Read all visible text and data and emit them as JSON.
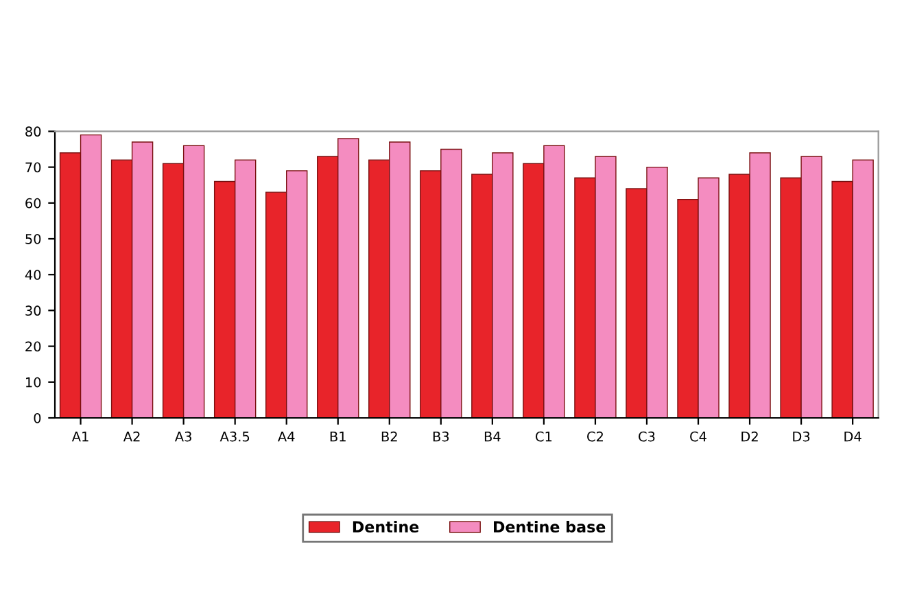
{
  "chart_data": {
    "type": "bar",
    "categories": [
      "A1",
      "A2",
      "A3",
      "A3.5",
      "A4",
      "B1",
      "B2",
      "B3",
      "B4",
      "C1",
      "C2",
      "C3",
      "C4",
      "D2",
      "D3",
      "D4"
    ],
    "series": [
      {
        "name": "Dentine",
        "color": "#e8242a",
        "values": [
          74,
          72,
          71,
          66,
          63,
          73,
          72,
          69,
          68,
          71,
          67,
          64,
          61,
          68,
          67,
          66
        ]
      },
      {
        "name": "Dentine base",
        "color": "#f48cc0",
        "values": [
          79,
          77,
          76,
          72,
          69,
          78,
          77,
          75,
          74,
          76,
          73,
          70,
          67,
          74,
          73,
          72
        ]
      }
    ],
    "ylim": [
      0,
      80
    ],
    "yticks": [
      0,
      10,
      20,
      30,
      40,
      50,
      60,
      70,
      80
    ],
    "grid": false,
    "legend": "bottom"
  }
}
